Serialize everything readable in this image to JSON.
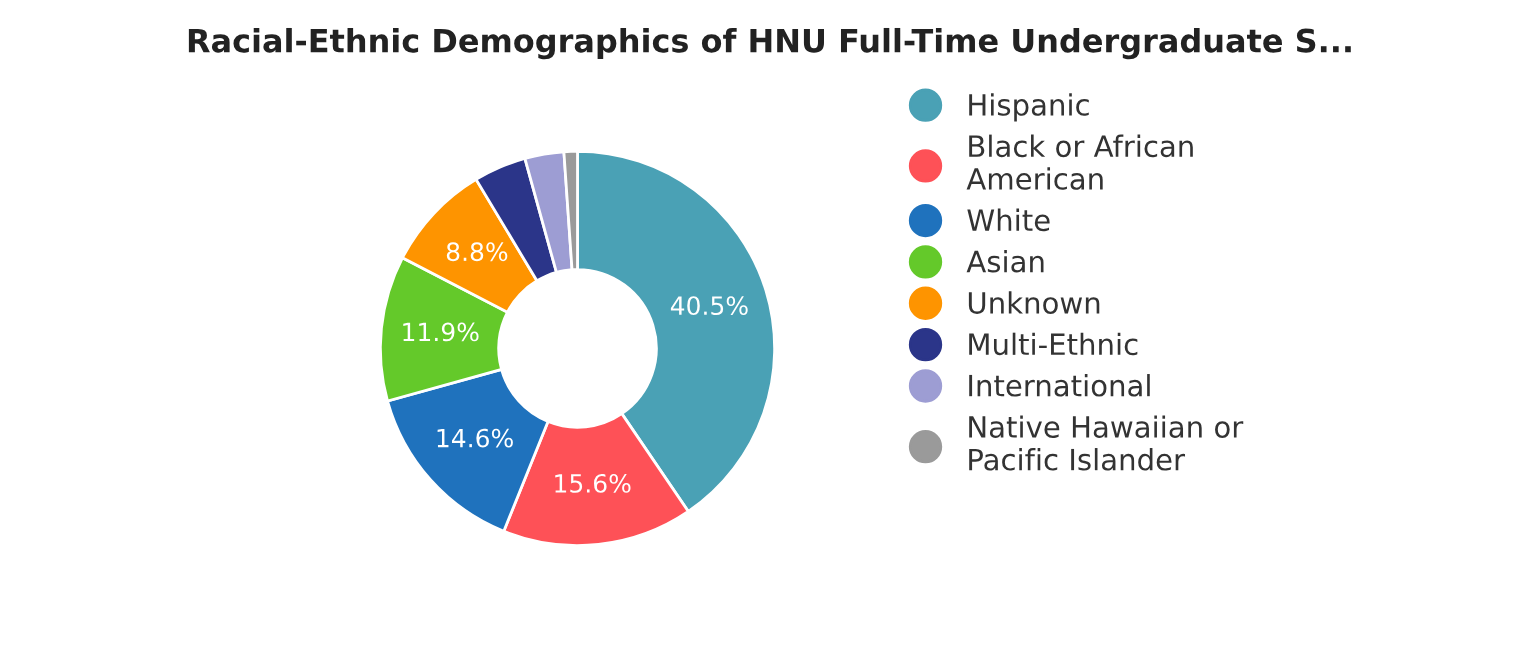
{
  "chart_data": {
    "type": "donut",
    "title": "Racial-Ethnic Demographics of HNU Full-Time Undergraduate S...",
    "categories": [
      "Hispanic",
      "Black or African\nAmerican",
      "White",
      "Asian",
      "Unknown",
      "Multi-Ethnic",
      "International",
      "Native Hawaiian or\nPacific Islander"
    ],
    "values": [
      40.5,
      15.6,
      14.6,
      11.9,
      8.8,
      4.3,
      3.2,
      1.1
    ],
    "colors": [
      "#4aa1b5",
      "#fe5157",
      "#1f72bd",
      "#64c92a",
      "#fe9400",
      "#2b3589",
      "#9d9dd3",
      "#9a9a9a"
    ],
    "value_labels": [
      "40.5%",
      "15.6%",
      "14.6%",
      "11.9%",
      "8.8%",
      null,
      null,
      null
    ],
    "legend": "right"
  }
}
